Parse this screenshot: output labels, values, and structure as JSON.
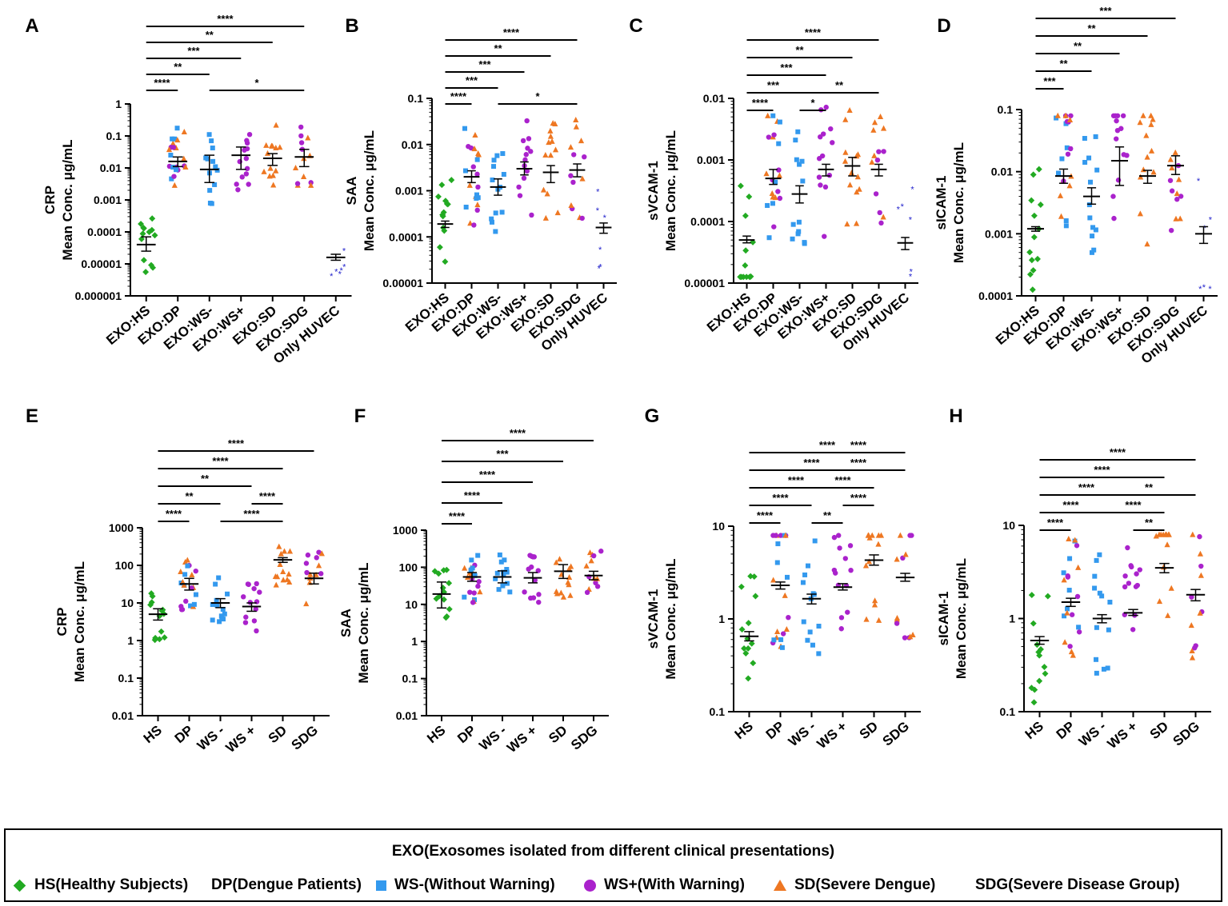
{
  "colors": {
    "HS": "#22aa22",
    "DP": "#ee7722",
    "WSm": "#3399ee",
    "WSp": "#aa22cc",
    "SD": "#ee7722",
    "SDG": "#aa22cc",
    "HUVEC": "#2222cc"
  },
  "legend": {
    "title": "EXO(Exosomes isolated from different clinical presentations)",
    "items": [
      {
        "symbol": "diamond",
        "color": "#22aa22",
        "label": "HS(Healthy Subjects)"
      },
      {
        "symbol": "none",
        "color": "",
        "label": "DP(Dengue Patients)"
      },
      {
        "symbol": "square",
        "color": "#3399ee",
        "label": "WS-(Without Warning)"
      },
      {
        "symbol": "circle",
        "color": "#aa22cc",
        "label": "WS+(With Warning)"
      },
      {
        "symbol": "triangle",
        "color": "#ee7722",
        "label": "SD(Severe Dengue)"
      },
      {
        "symbol": "none",
        "color": "",
        "label": "SDG(Severe Disease Group)"
      }
    ]
  },
  "chart_data": [
    {
      "panel": "A",
      "type": "scatter",
      "scale": "log",
      "ylabel_line1": "CRP",
      "ylabel_line2": "Mean Conc. μg/mL",
      "ylim": [
        1e-06,
        1
      ],
      "yticks": [
        {
          "v": 1,
          "t": "1"
        },
        {
          "v": 0.1,
          "t": "0.1"
        },
        {
          "v": 0.01,
          "t": "0.01"
        },
        {
          "v": 0.001,
          "t": "0.001"
        },
        {
          "v": 0.0001,
          "t": "0.0001"
        },
        {
          "v": 1e-05,
          "t": "0.00001"
        },
        {
          "v": 1e-06,
          "t": "0.000001"
        }
      ],
      "categories": [
        "EXO:HS",
        "EXO:DP",
        "EXO:WS-",
        "EXO:WS+",
        "EXO:SD",
        "EXO:SDG",
        "Only HUVEC"
      ],
      "means": [
        4e-05,
        0.016,
        0.009,
        0.025,
        0.02,
        0.022,
        1.6e-05
      ],
      "sem_low": [
        2.5e-05,
        0.011,
        0.0035,
        0.009,
        0.012,
        0.011,
        1.3e-05
      ],
      "sem_high": [
        7e-05,
        0.022,
        0.025,
        0.045,
        0.028,
        0.038,
        2e-05
      ],
      "significance": [
        {
          "from": 0,
          "to": 1,
          "label": "****"
        },
        {
          "from": 0,
          "to": 2,
          "label": "**"
        },
        {
          "from": 0,
          "to": 3,
          "label": "***"
        },
        {
          "from": 0,
          "to": 4,
          "label": "**"
        },
        {
          "from": 0,
          "to": 5,
          "label": "****"
        },
        {
          "from": 2,
          "to": 5,
          "label": "*"
        }
      ]
    },
    {
      "panel": "B",
      "type": "scatter",
      "scale": "log",
      "ylabel_line1": "SAA",
      "ylabel_line2": "Mean Conc. μg/mL",
      "ylim": [
        1e-05,
        0.1
      ],
      "yticks": [
        {
          "v": 0.1,
          "t": "0.1"
        },
        {
          "v": 0.01,
          "t": "0.01"
        },
        {
          "v": 0.001,
          "t": "0.001"
        },
        {
          "v": 0.0001,
          "t": "0.0001"
        },
        {
          "v": 1e-05,
          "t": "0.00001"
        }
      ],
      "categories": [
        "EXO:HS",
        "EXO:DP",
        "EXO:WS-",
        "EXO:WS+",
        "EXO:SD",
        "EXO:SDG",
        "Only HUVEC"
      ],
      "means": [
        0.00019,
        0.002,
        0.0012,
        0.003,
        0.0025,
        0.0028,
        0.00016
      ],
      "sem_low": [
        0.00016,
        0.0015,
        0.0008,
        0.0022,
        0.0015,
        0.002,
        0.00012
      ],
      "sem_high": [
        0.00022,
        0.0027,
        0.0018,
        0.0042,
        0.0035,
        0.0038,
        0.0002
      ],
      "significance": [
        {
          "from": 0,
          "to": 1,
          "label": "****"
        },
        {
          "from": 0,
          "to": 2,
          "label": "***"
        },
        {
          "from": 0,
          "to": 3,
          "label": "***"
        },
        {
          "from": 0,
          "to": 4,
          "label": "**"
        },
        {
          "from": 0,
          "to": 5,
          "label": "****"
        },
        {
          "from": 2,
          "to": 5,
          "label": "*"
        }
      ]
    },
    {
      "panel": "C",
      "type": "scatter",
      "scale": "log",
      "ylabel_line1": "sVCAM-1",
      "ylabel_line2": "Mean Conc. μg/mL",
      "ylim": [
        1e-05,
        0.01
      ],
      "yticks": [
        {
          "v": 0.01,
          "t": "0.01"
        },
        {
          "v": 0.001,
          "t": "0.001"
        },
        {
          "v": 0.0001,
          "t": "0.0001"
        },
        {
          "v": 1e-05,
          "t": "0.00001"
        }
      ],
      "categories": [
        "EXO:HS",
        "EXO:DP",
        "EXO:WS-",
        "EXO:WS+",
        "EXO:SD",
        "EXO:SDG",
        "Only HUVEC"
      ],
      "means": [
        5e-05,
        0.0005,
        0.00028,
        0.0007,
        0.0008,
        0.0007,
        4.5e-05
      ],
      "sem_low": [
        4.5e-05,
        0.0004,
        0.0002,
        0.00055,
        0.00055,
        0.00055,
        3.5e-05
      ],
      "sem_high": [
        5.8e-05,
        0.0007,
        0.00038,
        0.00085,
        0.0011,
        0.00085,
        5.5e-05
      ],
      "significance": [
        {
          "from": 0,
          "to": 1,
          "label": "****"
        },
        {
          "from": 0,
          "to": 2,
          "label": "***"
        },
        {
          "from": 0,
          "to": 3,
          "label": "***"
        },
        {
          "from": 0,
          "to": 4,
          "label": "**"
        },
        {
          "from": 0,
          "to": 5,
          "label": "****"
        },
        {
          "from": 2,
          "to": 3,
          "label": "*"
        },
        {
          "from": 2,
          "to": 5,
          "label": "**"
        }
      ]
    },
    {
      "panel": "D",
      "type": "scatter",
      "scale": "log",
      "ylabel_line1": "sICAM-1",
      "ylabel_line2": "Mean Conc. μg/mL",
      "ylim": [
        0.0001,
        0.1
      ],
      "yticks": [
        {
          "v": 0.1,
          "t": "0.1"
        },
        {
          "v": 0.01,
          "t": "0.01"
        },
        {
          "v": 0.001,
          "t": "0.001"
        },
        {
          "v": 0.0001,
          "t": "0.0001"
        }
      ],
      "categories": [
        "EXO:HS",
        "EXO:DP",
        "EXO:WS-",
        "EXO:WS+",
        "EXO:SD",
        "EXO:SDG",
        "Only HUVEC"
      ],
      "means": [
        0.0012,
        0.0085,
        0.004,
        0.015,
        0.0085,
        0.0125,
        0.001
      ],
      "sem_low": [
        0.0011,
        0.0065,
        0.003,
        0.006,
        0.0065,
        0.009,
        0.0007
      ],
      "sem_high": [
        0.0013,
        0.011,
        0.0055,
        0.025,
        0.0105,
        0.018,
        0.0013
      ],
      "significance": [
        {
          "from": 0,
          "to": 1,
          "label": "***"
        },
        {
          "from": 0,
          "to": 2,
          "label": "**"
        },
        {
          "from": 0,
          "to": 3,
          "label": "**"
        },
        {
          "from": 0,
          "to": 4,
          "label": "**"
        },
        {
          "from": 0,
          "to": 5,
          "label": "***"
        }
      ]
    },
    {
      "panel": "E",
      "type": "scatter",
      "scale": "log",
      "ylabel_line1": "CRP",
      "ylabel_line2": "Mean Conc. μg/mL",
      "ylim": [
        0.01,
        1000
      ],
      "yticks": [
        {
          "v": 1000,
          "t": "1000"
        },
        {
          "v": 100,
          "t": "100"
        },
        {
          "v": 10,
          "t": "10"
        },
        {
          "v": 1,
          "t": "1"
        },
        {
          "v": 0.1,
          "t": "0.1"
        },
        {
          "v": 0.01,
          "t": "0.01"
        }
      ],
      "categories": [
        "HS",
        "DP",
        "WS -",
        "WS +",
        "SD",
        "SDG"
      ],
      "means": [
        5,
        32,
        10,
        8,
        140,
        45
      ],
      "sem_low": [
        3.5,
        22,
        7.5,
        6,
        120,
        32
      ],
      "sem_high": [
        7,
        45,
        13,
        10,
        160,
        62
      ],
      "significance": [
        {
          "from": 0,
          "to": 1,
          "label": "****"
        },
        {
          "from": 0,
          "to": 2,
          "label": "**"
        },
        {
          "from": 0,
          "to": 3,
          "label": "**"
        },
        {
          "from": 0,
          "to": 4,
          "label": "****"
        },
        {
          "from": 0,
          "to": 5,
          "label": "****"
        },
        {
          "from": 2,
          "to": 4,
          "label": "****"
        },
        {
          "from": 3,
          "to": 4,
          "label": "****"
        }
      ]
    },
    {
      "panel": "F",
      "type": "scatter",
      "scale": "log",
      "ylabel_line1": "SAA",
      "ylabel_line2": "Mean Conc. μg/mL",
      "ylim": [
        0.01,
        1000
      ],
      "yticks": [
        {
          "v": 1000,
          "t": "1000"
        },
        {
          "v": 100,
          "t": "100"
        },
        {
          "v": 10,
          "t": "10"
        },
        {
          "v": 1,
          "t": "1"
        },
        {
          "v": 0.1,
          "t": "0.1"
        },
        {
          "v": 0.01,
          "t": "0.01"
        }
      ],
      "categories": [
        "HS",
        "DP",
        "WS -",
        "WS +",
        "SD",
        "SDG"
      ],
      "means": [
        19,
        55,
        55,
        52,
        78,
        60
      ],
      "sem_low": [
        8,
        42,
        38,
        38,
        50,
        46
      ],
      "sem_high": [
        40,
        72,
        80,
        72,
        118,
        78
      ],
      "significance": [
        {
          "from": 0,
          "to": 1,
          "label": "****"
        },
        {
          "from": 0,
          "to": 2,
          "label": "****"
        },
        {
          "from": 0,
          "to": 3,
          "label": "****"
        },
        {
          "from": 0,
          "to": 4,
          "label": "***"
        },
        {
          "from": 0,
          "to": 5,
          "label": "****"
        }
      ]
    },
    {
      "panel": "G",
      "type": "scatter",
      "scale": "log",
      "ylabel_line1": "sVCAM-1",
      "ylabel_line2": "Mean Conc. μg/mL",
      "ylim": [
        0.1,
        10
      ],
      "yticks": [
        {
          "v": 10,
          "t": "10"
        },
        {
          "v": 1,
          "t": "1"
        },
        {
          "v": 0.1,
          "t": "0.1"
        }
      ],
      "categories": [
        "HS",
        "DP",
        "WS -",
        "WS +",
        "SD",
        "SDG"
      ],
      "means": [
        0.65,
        2.3,
        1.65,
        2.2,
        4.3,
        2.8
      ],
      "sem_low": [
        0.58,
        2.1,
        1.45,
        2.05,
        3.8,
        2.55
      ],
      "sem_high": [
        0.73,
        2.5,
        1.85,
        2.4,
        4.9,
        3.1
      ],
      "significance": [
        {
          "from": 0,
          "to": 1,
          "label": "****"
        },
        {
          "from": 0,
          "to": 2,
          "label": "****"
        },
        {
          "from": 0,
          "to": 3,
          "label": "****"
        },
        {
          "from": 0,
          "to": 4,
          "label": "****"
        },
        {
          "from": 0,
          "to": 5,
          "label": "****"
        },
        {
          "from": 2,
          "to": 3,
          "label": "**"
        },
        {
          "from": 3,
          "to": 4,
          "label": "****"
        },
        {
          "from": 2,
          "to": 4,
          "label": "****"
        },
        {
          "from": 2,
          "to": 5,
          "label": "****"
        },
        {
          "from": 2,
          "to": 5,
          "label": "****"
        }
      ]
    },
    {
      "panel": "H",
      "type": "scatter",
      "scale": "log",
      "ylabel_line1": "sICAM-1",
      "ylabel_line2": "Mean Conc. μg/mL",
      "ylim": [
        0.1,
        10
      ],
      "yticks": [
        {
          "v": 10,
          "t": "10"
        },
        {
          "v": 1,
          "t": "1"
        },
        {
          "v": 0.1,
          "t": "0.1"
        }
      ],
      "categories": [
        "HS",
        "DP",
        "WS -",
        "WS +",
        "SD",
        "SDG"
      ],
      "means": [
        0.58,
        1.5,
        1.0,
        1.15,
        3.5,
        1.8
      ],
      "sem_low": [
        0.53,
        1.35,
        0.9,
        1.08,
        3.1,
        1.55
      ],
      "sem_high": [
        0.64,
        1.65,
        1.1,
        1.25,
        3.9,
        2.05
      ],
      "significance": [
        {
          "from": 0,
          "to": 1,
          "label": "****"
        },
        {
          "from": 0,
          "to": 2,
          "label": "****"
        },
        {
          "from": 0,
          "to": 3,
          "label": "****"
        },
        {
          "from": 0,
          "to": 4,
          "label": "****"
        },
        {
          "from": 0,
          "to": 5,
          "label": "****"
        },
        {
          "from": 3,
          "to": 4,
          "label": "**"
        },
        {
          "from": 2,
          "to": 4,
          "label": "****"
        },
        {
          "from": 2,
          "to": 5,
          "label": "**"
        }
      ]
    }
  ]
}
